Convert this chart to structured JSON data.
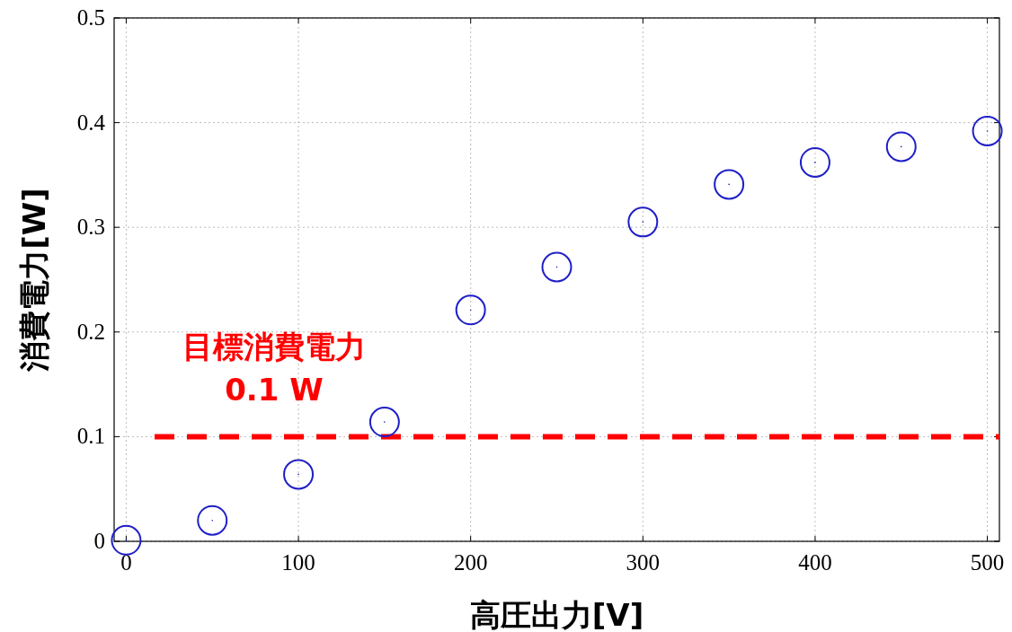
{
  "chart_data": {
    "type": "scatter",
    "xlabel": "高圧出力[V]",
    "ylabel": "消費電力[W]",
    "x": [
      0,
      50,
      100,
      150,
      200,
      250,
      300,
      350,
      400,
      450,
      500
    ],
    "values": [
      0.001,
      0.02,
      0.064,
      0.114,
      0.221,
      0.262,
      0.305,
      0.341,
      0.362,
      0.377,
      0.392
    ],
    "color": "#1f1fc8",
    "marker": "circle",
    "grid": true,
    "xlim": [
      -7,
      507
    ],
    "ylim": [
      0,
      0.5
    ],
    "xticks": [
      0,
      100,
      200,
      300,
      400,
      500
    ],
    "yticks": [
      0,
      0.1,
      0.2,
      0.3,
      0.4,
      0.5
    ],
    "ref_lines": [
      {
        "axis": "y",
        "value": 0.1,
        "label": "目標消費電力 0.1 W",
        "color": "#ff0000",
        "line_style": "dashed"
      }
    ]
  }
}
